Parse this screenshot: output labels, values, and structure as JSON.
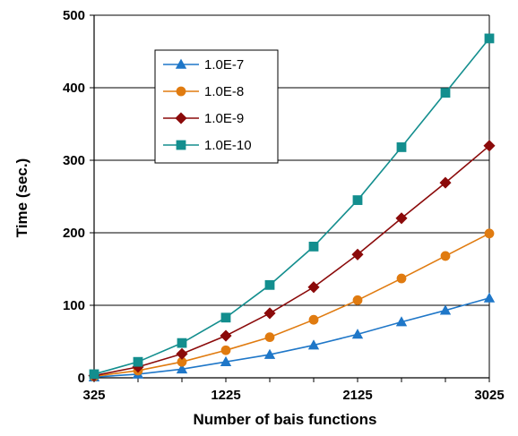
{
  "chart_data": {
    "type": "line",
    "xlabel": "Number of bais functions",
    "ylabel": "Time (sec.)",
    "x": [
      325,
      625,
      925,
      1225,
      1525,
      1825,
      2125,
      2425,
      2725,
      3025
    ],
    "x_ticks": [
      325,
      1225,
      2125,
      3025
    ],
    "y_ticks": [
      0,
      100,
      200,
      300,
      400,
      500
    ],
    "xlim": [
      325,
      3025
    ],
    "ylim": [
      0,
      500
    ],
    "grid": "horizontal",
    "legend_position": "top-left",
    "series": [
      {
        "name": "1.0E-7",
        "color": "#1f77c8",
        "marker": "triangle",
        "values": [
          1,
          5,
          12,
          22,
          32,
          45,
          60,
          77,
          93,
          110
        ]
      },
      {
        "name": "1.0E-8",
        "color": "#e07b10",
        "marker": "circle",
        "values": [
          2,
          10,
          22,
          38,
          56,
          80,
          107,
          137,
          168,
          199
        ]
      },
      {
        "name": "1.0E-9",
        "color": "#8b0a0a",
        "marker": "diamond",
        "values": [
          3,
          15,
          33,
          58,
          89,
          125,
          170,
          220,
          269,
          320
        ]
      },
      {
        "name": "1.0E-10",
        "color": "#138e8e",
        "marker": "square",
        "values": [
          5,
          22,
          48,
          83,
          128,
          181,
          245,
          318,
          393,
          468
        ]
      }
    ]
  }
}
